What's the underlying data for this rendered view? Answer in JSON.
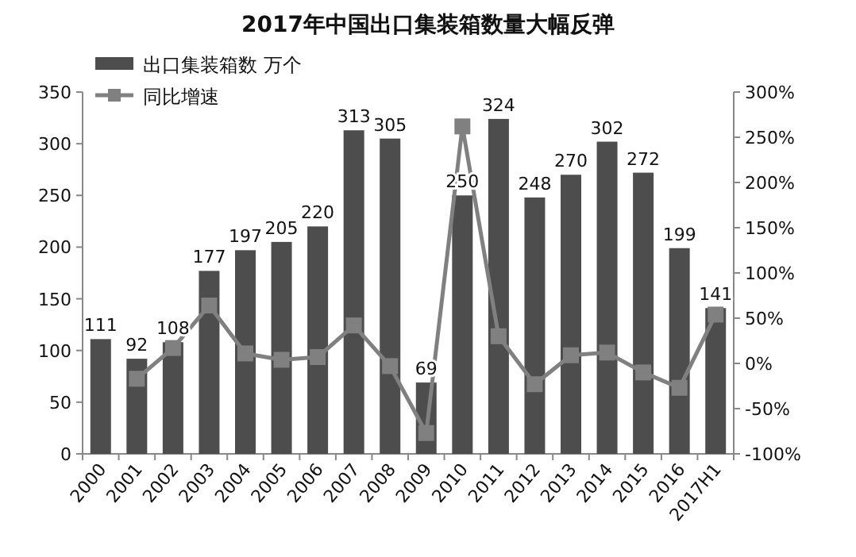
{
  "chart_data": {
    "type": "bar",
    "title": "2017年中国出口集装箱数量大幅反弹",
    "categories": [
      "2000",
      "2001",
      "2002",
      "2003",
      "2004",
      "2005",
      "2006",
      "2007",
      "2008",
      "2009",
      "2010",
      "2011",
      "2012",
      "2013",
      "2014",
      "2015",
      "2016",
      "2017H1"
    ],
    "series": [
      {
        "name": "出口集装箱数 万个",
        "color": "#4d4d4d",
        "values": [
          111,
          92,
          108,
          177,
          197,
          205,
          220,
          313,
          305,
          69,
          250,
          324,
          248,
          270,
          302,
          272,
          199,
          141
        ],
        "value_labels": [
          "111",
          "92",
          "108",
          "177",
          "197",
          "205",
          "220",
          "313",
          "305",
          "69",
          "250",
          "324",
          "248",
          "270",
          "302",
          "272",
          "199",
          "141"
        ]
      },
      {
        "name": "同比增速",
        "type": "line",
        "axis": "y2",
        "color": "#808080",
        "values": [
          null,
          -17,
          17,
          64,
          11,
          4,
          7,
          42,
          -3,
          -77,
          262,
          30,
          -23,
          9,
          12,
          -10,
          -27,
          54
        ]
      }
    ],
    "ylim": [
      0,
      350
    ],
    "yticks": [
      0,
      50,
      100,
      150,
      200,
      250,
      300,
      350
    ],
    "y2lim": [
      -100,
      300
    ],
    "y2ticks": [
      {
        "value": -100,
        "label": "-100%"
      },
      {
        "value": -50,
        "label": "-50%"
      },
      {
        "value": 0,
        "label": "0%"
      },
      {
        "value": 50,
        "label": "50%"
      },
      {
        "value": 100,
        "label": "100%"
      },
      {
        "value": 150,
        "label": "150%"
      },
      {
        "value": 200,
        "label": "200%"
      },
      {
        "value": 250,
        "label": "250%"
      },
      {
        "value": 300,
        "label": "300%"
      }
    ],
    "legend": "top left",
    "marker": "square",
    "grid": false
  }
}
